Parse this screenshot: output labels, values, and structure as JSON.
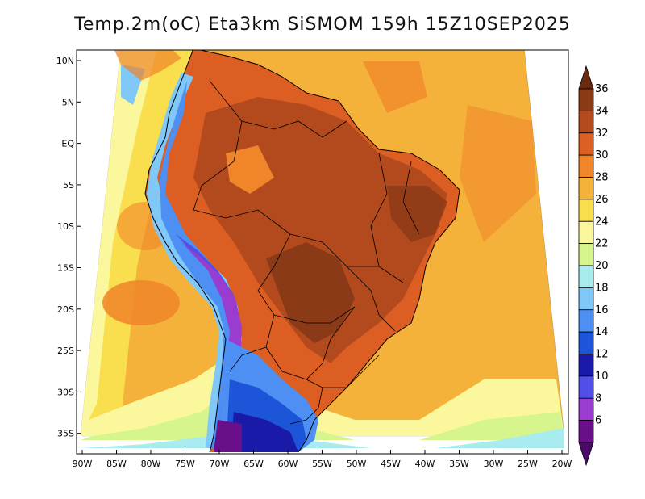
{
  "title": "Temp.2m(oC) Eta3km SiSMOM 159h 15Z10SEP2025",
  "lat_ticks": [
    "10N",
    "5N",
    "EQ",
    "5S",
    "10S",
    "15S",
    "20S",
    "25S",
    "30S",
    "35S"
  ],
  "lon_ticks": [
    "90W",
    "85W",
    "80W",
    "75W",
    "70W",
    "65W",
    "60W",
    "55W",
    "50W",
    "45W",
    "40W",
    "35W",
    "30W",
    "25W",
    "20W"
  ],
  "colorbar": {
    "labels": [
      "36",
      "34",
      "32",
      "30",
      "28",
      "26",
      "24",
      "22",
      "20",
      "18",
      "16",
      "14",
      "12",
      "10",
      "8",
      "6"
    ],
    "colors": [
      "#6b2a0f",
      "#8a3a16",
      "#b24a1e",
      "#dd5e22",
      "#f0852a",
      "#f5b23a",
      "#f9df4e",
      "#fbf79c",
      "#d6f58c",
      "#a8ecf0",
      "#7fc8f8",
      "#4d8ff2",
      "#1d55d8",
      "#1a1aa8",
      "#5050e8",
      "#9a3ccf",
      "#6a0f8a",
      "#4a0a6a"
    ]
  }
}
